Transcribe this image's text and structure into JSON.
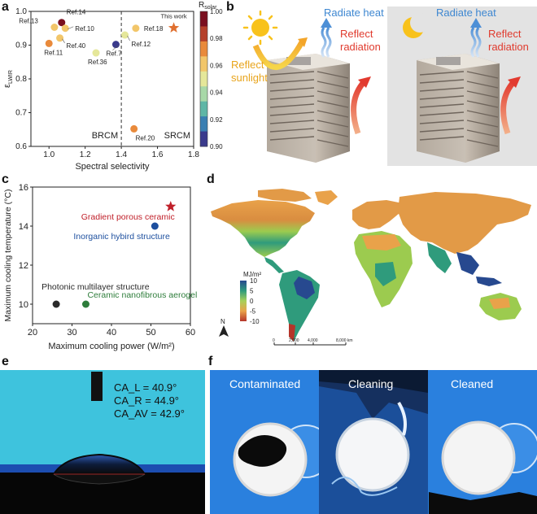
{
  "panel_labels": {
    "a": "a",
    "b": "b",
    "c": "c",
    "d": "d",
    "e": "e",
    "f": "f"
  },
  "chart_data": [
    {
      "panel": "a",
      "type": "scatter",
      "xlabel": "Spectral selectivity",
      "ylabel_main": "ε",
      "ylabel_sub": "LWIR",
      "xlim": [
        0.9,
        1.8
      ],
      "ylim": [
        0.6,
        1.0
      ],
      "xticks": [
        "1.0",
        "1.2",
        "1.4",
        "1.6",
        "1.8"
      ],
      "yticks": [
        "0.6",
        "0.7",
        "0.8",
        "0.9",
        "1.0"
      ],
      "divider_x": 1.4,
      "region_labels": {
        "left": "BRCM",
        "right": "SRCM"
      },
      "colorbar": {
        "label_main": "R",
        "label_sub": "solar",
        "min": 0.9,
        "max": 1.0,
        "ticks": [
          "1.00",
          "0.98",
          "0.96",
          "0.94",
          "0.92",
          "0.90"
        ],
        "colors": [
          "#7a0f1f",
          "#b5402a",
          "#e98a3b",
          "#f2c66a",
          "#e5e79a",
          "#a8d8a8",
          "#5fb6a6",
          "#3a7fb2",
          "#3a3a8c"
        ]
      },
      "points": [
        {
          "label": "Ref.13",
          "x": 1.03,
          "y": 0.953,
          "rsolar": 0.962
        },
        {
          "label": "Ref.14",
          "x": 1.07,
          "y": 0.967,
          "rsolar": 0.995
        },
        {
          "label": "Ref.10",
          "x": 1.09,
          "y": 0.95,
          "rsolar": 0.968
        },
        {
          "label": "Ref.40",
          "x": 1.06,
          "y": 0.921,
          "rsolar": 0.962
        },
        {
          "label": "Ref.11",
          "x": 1.0,
          "y": 0.905,
          "rsolar": 0.976
        },
        {
          "label": "Ref.36",
          "x": 1.26,
          "y": 0.877,
          "rsolar": 0.947
        },
        {
          "label": "Ref.7",
          "x": 1.37,
          "y": 0.902,
          "rsolar": 0.905
        },
        {
          "label": "Ref.18",
          "x": 1.48,
          "y": 0.95,
          "rsolar": 0.968
        },
        {
          "label": "Ref.12",
          "x": 1.42,
          "y": 0.93,
          "rsolar": 0.956
        },
        {
          "label": "Ref.20",
          "x": 1.47,
          "y": 0.652,
          "rsolar": 0.976
        },
        {
          "label": "This work",
          "x": 1.69,
          "y": 0.951,
          "rsolar": 0.978,
          "marker": "star"
        }
      ]
    },
    {
      "panel": "c",
      "type": "scatter",
      "xlabel": "Maximum cooling power (W/m²)",
      "ylabel": "Maximum cooling temperature (°C)",
      "xlim": [
        20,
        60
      ],
      "ylim": [
        9,
        16
      ],
      "xticks": [
        "20",
        "30",
        "40",
        "50",
        "60"
      ],
      "yticks": [
        "10",
        "12",
        "14",
        "16"
      ],
      "points": [
        {
          "label": "Gradient porous ceramic",
          "x": 55,
          "y": 15.0,
          "color": "#c0202a",
          "marker": "star"
        },
        {
          "label": "Inorganic hybird structure",
          "x": 51,
          "y": 14.0,
          "color": "#1d4f9e"
        },
        {
          "label": "Photonic multilayer structure",
          "x": 26,
          "y": 10.0,
          "color": "#2a2a2a"
        },
        {
          "label": "Ceramic nanofibrous aerogel",
          "x": 33.5,
          "y": 10.0,
          "color": "#2e7d3b"
        }
      ]
    }
  ],
  "panel_b": {
    "left": {
      "radiate": "Radiate heat",
      "reflect_radiation": [
        "Reflect",
        "radiation"
      ],
      "reflect_sunlight": [
        "Reflect",
        "sunlight"
      ]
    },
    "right": {
      "radiate": "Radiate heat",
      "reflect_radiation": [
        "Reflect",
        "radiation"
      ]
    }
  },
  "panel_d": {
    "unit_label": "MJ/m²",
    "colorbar_ticks": [
      "10",
      "5",
      "0",
      "-5",
      "-10"
    ],
    "north": "N",
    "scale_ticks": [
      "0",
      "2,000",
      "4,000",
      "8,000 km"
    ]
  },
  "panel_e": {
    "lines": [
      "CA_L = 40.9°",
      "CA_R = 44.9°",
      "CA_AV = 42.9°"
    ]
  },
  "panel_f": {
    "captions": [
      "Contaminated",
      "Cleaning",
      "Cleaned"
    ]
  }
}
